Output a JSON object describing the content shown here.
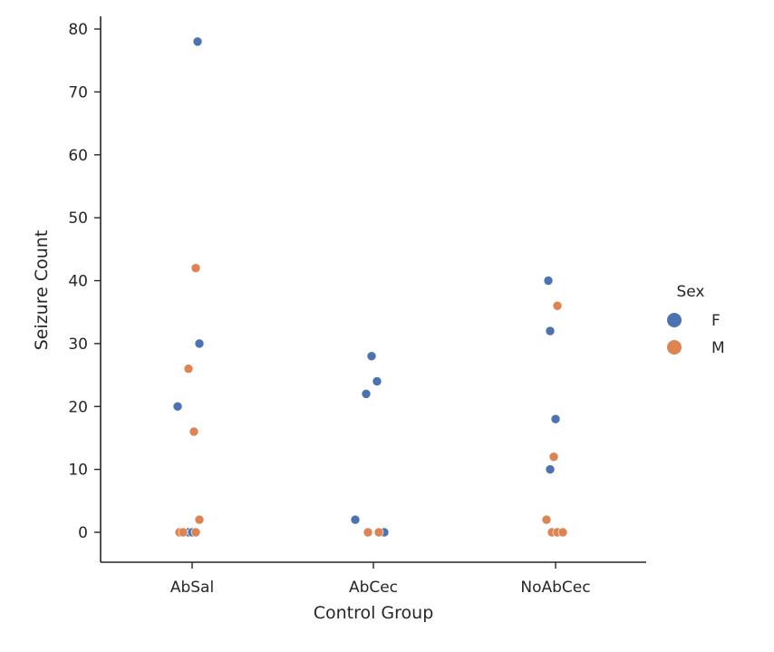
{
  "chart_data": {
    "type": "scatter",
    "subtype": "strip",
    "xlabel": "Control Group",
    "ylabel": "Seizure Count",
    "categories": [
      "AbSal",
      "AbCec",
      "NoAbCec"
    ],
    "ylim": [
      -5,
      82
    ],
    "yticks": [
      0,
      10,
      20,
      30,
      40,
      50,
      60,
      70,
      80
    ],
    "grid": false,
    "legend": {
      "title": "Sex",
      "placement": "right",
      "entries": [
        {
          "label": "F",
          "color": "#4c72b0"
        },
        {
          "label": "M",
          "color": "#dd8452"
        }
      ]
    },
    "series": [
      {
        "name": "F",
        "color": "#4c72b0",
        "points": [
          {
            "category": "AbSal",
            "jitter": 0.03,
            "y": 78
          },
          {
            "category": "AbSal",
            "jitter": 0.04,
            "y": 30
          },
          {
            "category": "AbSal",
            "jitter": -0.08,
            "y": 20
          },
          {
            "category": "AbSal",
            "jitter": -0.02,
            "y": 0
          },
          {
            "category": "AbSal",
            "jitter": 0.0,
            "y": 0
          },
          {
            "category": "AbCec",
            "jitter": -0.01,
            "y": 28
          },
          {
            "category": "AbCec",
            "jitter": 0.02,
            "y": 24
          },
          {
            "category": "AbCec",
            "jitter": -0.04,
            "y": 22
          },
          {
            "category": "AbCec",
            "jitter": -0.1,
            "y": 2
          },
          {
            "category": "AbCec",
            "jitter": 0.04,
            "y": 0
          },
          {
            "category": "AbCec",
            "jitter": 0.06,
            "y": 0
          },
          {
            "category": "NoAbCec",
            "jitter": -0.04,
            "y": 40
          },
          {
            "category": "NoAbCec",
            "jitter": -0.03,
            "y": 32
          },
          {
            "category": "NoAbCec",
            "jitter": -0.0,
            "y": 18
          },
          {
            "category": "NoAbCec",
            "jitter": -0.03,
            "y": 10
          }
        ]
      },
      {
        "name": "M",
        "color": "#dd8452",
        "points": [
          {
            "category": "AbSal",
            "jitter": 0.02,
            "y": 42
          },
          {
            "category": "AbSal",
            "jitter": -0.02,
            "y": 26
          },
          {
            "category": "AbSal",
            "jitter": 0.01,
            "y": 16
          },
          {
            "category": "AbSal",
            "jitter": 0.04,
            "y": 2
          },
          {
            "category": "AbSal",
            "jitter": -0.07,
            "y": 0
          },
          {
            "category": "AbSal",
            "jitter": -0.05,
            "y": 0
          },
          {
            "category": "AbSal",
            "jitter": 0.02,
            "y": 0
          },
          {
            "category": "AbCec",
            "jitter": -0.03,
            "y": 0
          },
          {
            "category": "AbCec",
            "jitter": 0.03,
            "y": 0
          },
          {
            "category": "NoAbCec",
            "jitter": 0.01,
            "y": 36
          },
          {
            "category": "NoAbCec",
            "jitter": -0.01,
            "y": 12
          },
          {
            "category": "NoAbCec",
            "jitter": -0.05,
            "y": 2
          },
          {
            "category": "NoAbCec",
            "jitter": -0.02,
            "y": 0
          },
          {
            "category": "NoAbCec",
            "jitter": 0.01,
            "y": 0
          },
          {
            "category": "NoAbCec",
            "jitter": 0.04,
            "y": 0
          }
        ]
      }
    ]
  }
}
